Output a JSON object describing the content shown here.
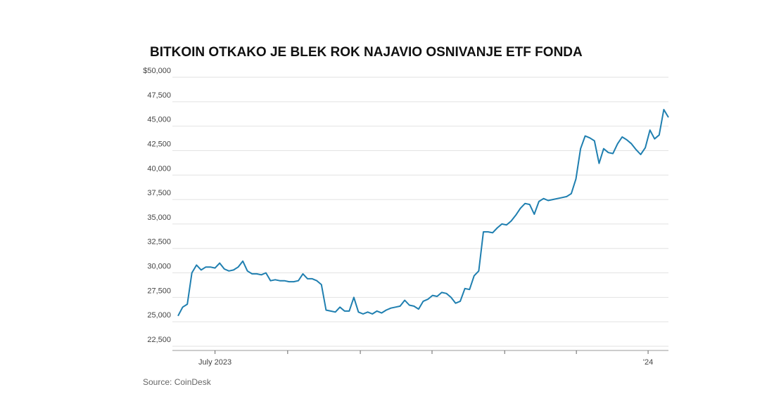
{
  "chart_data": {
    "type": "line",
    "title": "BITKOIN OTKAKO JE BLEK ROK NAJAVIO OSNIVANJE ETF FONDA",
    "source": "Source: CoinDesk",
    "color": "#1f7fb0",
    "grid": true,
    "x": [
      0,
      1,
      2,
      3,
      4,
      5,
      6,
      7,
      8,
      9,
      10,
      11,
      12,
      13,
      14,
      15,
      16,
      17,
      18,
      19,
      20,
      21,
      22,
      23,
      24,
      25,
      26,
      27,
      28,
      29,
      30,
      31,
      32,
      33,
      34,
      35,
      36,
      37,
      38,
      39,
      40,
      41,
      42,
      43,
      44,
      45,
      46,
      47,
      48,
      49,
      50,
      51,
      52,
      53,
      54,
      55,
      56,
      57,
      58,
      59,
      60,
      61,
      62,
      63,
      64,
      65,
      66,
      67,
      68,
      69,
      70,
      71,
      72,
      73,
      74,
      75,
      76,
      77,
      78,
      79,
      80,
      81,
      82,
      83,
      84,
      85,
      86,
      87,
      88,
      89,
      90,
      91,
      92,
      93,
      94,
      95,
      96,
      97,
      98,
      99,
      100,
      101,
      102,
      103,
      104,
      105,
      106
    ],
    "values": [
      25600,
      26500,
      26800,
      30000,
      30800,
      30300,
      30600,
      30600,
      30500,
      31000,
      30400,
      30200,
      30300,
      30600,
      31200,
      30200,
      29900,
      29900,
      29800,
      30000,
      29200,
      29300,
      29200,
      29200,
      29100,
      29100,
      29200,
      29900,
      29400,
      29400,
      29200,
      28800,
      26200,
      26100,
      26000,
      26500,
      26100,
      26100,
      27500,
      26000,
      25800,
      26000,
      25800,
      26100,
      25900,
      26200,
      26400,
      26500,
      26600,
      27200,
      26700,
      26600,
      26300,
      27100,
      27300,
      27700,
      27600,
      28000,
      27900,
      27500,
      26900,
      27100,
      28400,
      28300,
      29700,
      30200,
      34200,
      34200,
      34100,
      34600,
      35000,
      34900,
      35300,
      35900,
      36600,
      37100,
      37000,
      36000,
      37300,
      37600,
      37400,
      37500,
      37600,
      37700,
      37800,
      38100,
      39600,
      42700,
      44000,
      43800,
      43500,
      41200,
      42700,
      42300,
      42200,
      43200,
      43900,
      43600,
      43200,
      42600,
      42100,
      42800,
      44600,
      43700,
      44100,
      46700,
      45900
    ],
    "xlim": [
      0,
      106
    ],
    "xticks": [
      {
        "value": 8,
        "label": "July 2023"
      },
      {
        "value": 23.7,
        "label": null
      },
      {
        "value": 39.4,
        "label": null
      },
      {
        "value": 54.9,
        "label": null
      },
      {
        "value": 70.6,
        "label": null
      },
      {
        "value": 86.1,
        "label": null
      },
      {
        "value": 101.6,
        "label": "'24"
      }
    ],
    "ylim": [
      22500,
      50000
    ],
    "yticks": [
      {
        "value": 22500,
        "label": "22,500"
      },
      {
        "value": 25000,
        "label": "25,000"
      },
      {
        "value": 27500,
        "label": "27,500"
      },
      {
        "value": 30000,
        "label": "30,000"
      },
      {
        "value": 32500,
        "label": "32,500"
      },
      {
        "value": 35000,
        "label": "35,000"
      },
      {
        "value": 37500,
        "label": "37,500"
      },
      {
        "value": 40000,
        "label": "40,000"
      },
      {
        "value": 42500,
        "label": "42,500"
      },
      {
        "value": 45000,
        "label": "45,000"
      },
      {
        "value": 47500,
        "label": "47,500"
      },
      {
        "value": 50000,
        "label": "$50,000"
      }
    ]
  }
}
